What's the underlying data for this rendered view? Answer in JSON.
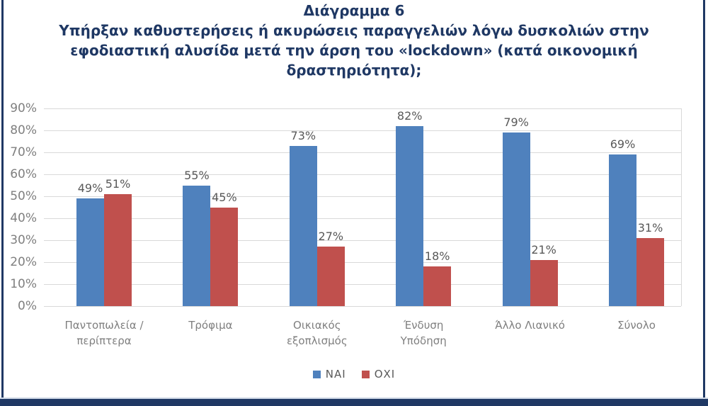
{
  "frame": {
    "border_color": "#1F3864"
  },
  "title": {
    "color": "#1F3864",
    "lines": [
      "Διάγραμμα 6",
      "Υπήρξαν καθυστερήσεις ή ακυρώσεις παραγγελιών λόγω δυσκολιών στην",
      "εφοδιαστική αλυσίδα μετά την άρση του «lockdown» (κατά οικονομική",
      "δραστηριότητα);"
    ]
  },
  "chart_data": {
    "type": "bar",
    "title": "Διάγραμμα 6 — Υπήρξαν καθυστερήσεις ή ακυρώσεις παραγγελιών λόγω δυσκολιών στην εφοδιαστική αλυσίδα μετά την άρση του «lockdown» (κατά οικονομική δραστηριότητα);",
    "categories": [
      "Παντοπωλεία / περίπτερα",
      "Τρόφιμα",
      "Οικιακός εξοπλισμός",
      "Ένδυση Υπόδηση",
      "Άλλο Λιανικό",
      "Σύνολο"
    ],
    "categories_wrapped": [
      "Παντοπωλεία /\nπερίπτερα",
      "Τρόφιμα",
      "Οικιακός\nεξοπλισμός",
      "Ένδυση\nΥπόδηση",
      "Άλλο Λιανικό",
      "Σύνολο"
    ],
    "series": [
      {
        "name": "ΝΑΙ",
        "color": "#4F81BD",
        "values": [
          49,
          55,
          73,
          82,
          79,
          69
        ]
      },
      {
        "name": "ΟΧΙ",
        "color": "#C0504D",
        "values": [
          51,
          45,
          27,
          18,
          21,
          31
        ]
      }
    ],
    "value_suffix": "%",
    "y_axis": {
      "min": 0,
      "max": 90,
      "step": 10,
      "tick_suffix": "%"
    },
    "y_tick_labels": [
      "0%",
      "10%",
      "20%",
      "30%",
      "40%",
      "50%",
      "60%",
      "70%",
      "80%",
      "90%"
    ],
    "grid": true,
    "legend_position": "bottom",
    "colors": {
      "gridline": "#D9D9D9",
      "axis_label": "#7F7F7F",
      "data_label": "#595959",
      "legend_label": "#595959"
    }
  }
}
